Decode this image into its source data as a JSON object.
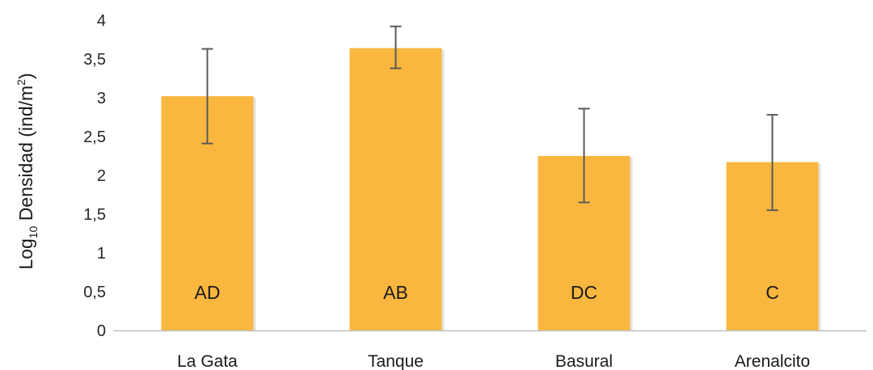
{
  "chart_data": {
    "type": "bar",
    "categories": [
      "La Gata",
      "Tanque",
      "Basural",
      "Arenalcito"
    ],
    "values": [
      3.02,
      3.64,
      2.25,
      2.17
    ],
    "error_upper": [
      3.63,
      3.92,
      2.86,
      2.78
    ],
    "error_lower": [
      2.41,
      3.38,
      1.65,
      1.55
    ],
    "bar_labels": [
      "AD",
      "AB",
      "DC",
      "C"
    ],
    "ylabel": {
      "base": "Log",
      "subscript": "10",
      "text": " Densidad (ind/m",
      "superscript": "2",
      "close": ")"
    },
    "xlabel": "",
    "ylim": [
      0,
      4
    ],
    "yticks": [
      "0",
      "0,5",
      "1",
      "1,5",
      "2",
      "2,5",
      "3",
      "3,5",
      "4"
    ],
    "ytick_values": [
      0,
      0.5,
      1,
      1.5,
      2,
      2.5,
      3,
      3.5,
      4
    ],
    "grid": false,
    "legend": "none",
    "colors": {
      "bar": "#FAB73F",
      "bar_shadow": "#c8c8c8",
      "error_bar": "#595959",
      "axis": "#bfbfbf"
    }
  }
}
